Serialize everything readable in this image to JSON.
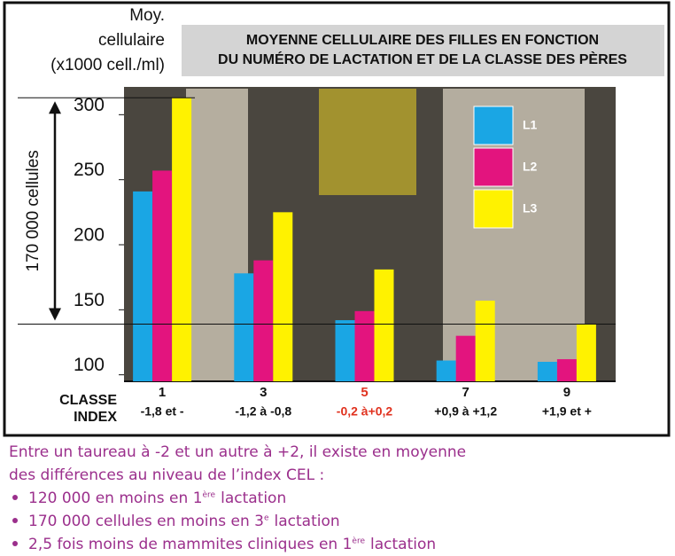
{
  "chart_data": {
    "type": "bar",
    "title": [
      "MOYENNE CELLULAIRE DES FILLES EN FONCTION",
      "DU NUMÉRO DE LACTATION ET DE LA CLASSE DES PÈRES"
    ],
    "y_label": [
      "Moy.",
      "cellulaire",
      "(x1000 cell./ml)"
    ],
    "x_label": [
      "CLASSE",
      "INDEX"
    ],
    "categories": [
      "1",
      "3",
      "5",
      "7",
      "9"
    ],
    "category_sublabels": [
      "-1,8 et -",
      "-1,2 à -0,8",
      "-0,2 à+0,2",
      "+0,9 à +1,2",
      "+1,9 et +"
    ],
    "highlight": {
      "index": 2,
      "color": "#e0321f"
    },
    "series": [
      {
        "name": "L1",
        "color": "#1aa6e4",
        "values": [
          241,
          178,
          142,
          111,
          110
        ]
      },
      {
        "name": "L2",
        "color": "#e3147e",
        "values": [
          257,
          188,
          149,
          130,
          112
        ]
      },
      {
        "name": "L3",
        "color": "#fff200",
        "values": [
          313,
          225,
          181,
          157,
          139
        ]
      }
    ],
    "ylim": [
      95,
      320
    ],
    "yticks": [
      100,
      150,
      200,
      250,
      300
    ],
    "legend": "top-right",
    "range_annotation": "170 000 cellules"
  },
  "note": {
    "lines": [
      "Entre un taureau à -2 et un autre à +2, il existe en moyenne",
      "des différences au niveau de l’index CEL :"
    ],
    "bullets": [
      {
        "text": "120 000 en moins en 1",
        "sup": "ère",
        "rest": "lactation"
      },
      {
        "text": "170 000 cellules en moins en 3",
        "sup": "e",
        "rest": "lactation"
      },
      {
        "text": "2,5 fois moins de mammites cliniques en 1",
        "sup": "ère",
        "rest": "lactation"
      }
    ]
  }
}
